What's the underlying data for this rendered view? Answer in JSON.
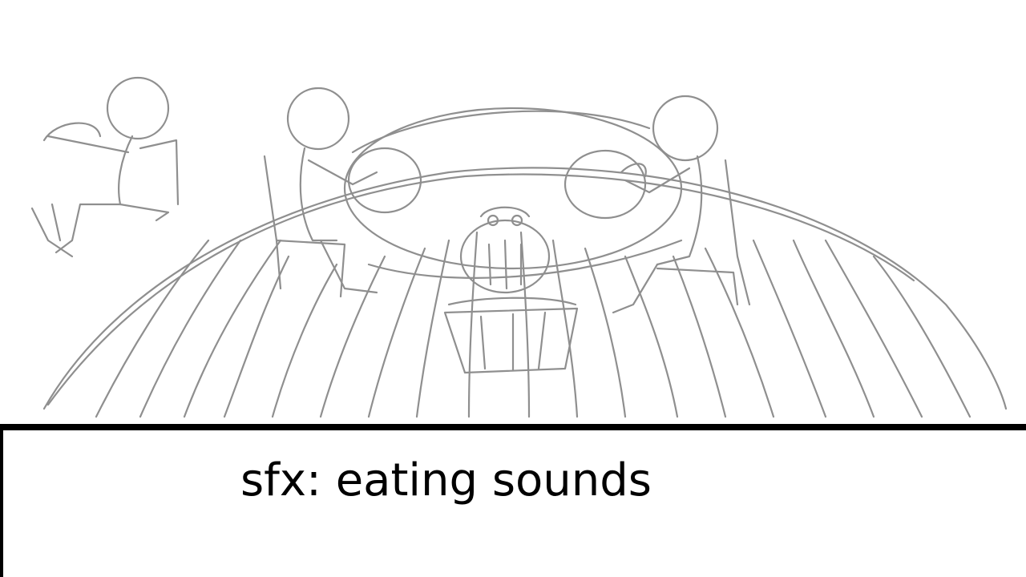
{
  "storyboard": {
    "caption": "sfx: eating sounds",
    "sketch_color": "#8f8f8f",
    "divider_color": "#000000"
  }
}
